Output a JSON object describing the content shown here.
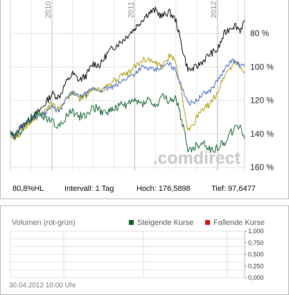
{
  "chart_data": [
    {
      "type": "line",
      "x_ticks": [
        "2010",
        "2011",
        "2012"
      ],
      "y_ticks": [
        "80 %",
        "100 %",
        "120 %",
        "140 %",
        "160 %"
      ],
      "ylim": [
        78,
        180
      ],
      "grid": true,
      "watermark": ".comdirect",
      "series_colors": [
        "#000000",
        "#a89a00",
        "#3c64c8",
        "#0b5e2a"
      ],
      "x_dates": [
        "2009-07-01",
        "2009-07-20",
        "2009-08-10",
        "2009-09-01",
        "2009-10-01",
        "2009-11-01",
        "2009-12-01",
        "2010-01-01",
        "2010-02-01",
        "2010-03-01",
        "2010-04-01",
        "2010-05-01",
        "2010-06-01",
        "2010-07-01",
        "2010-08-01",
        "2010-09-01",
        "2010-10-01",
        "2010-11-01",
        "2010-12-01",
        "2011-01-01",
        "2011-02-01",
        "2011-03-01",
        "2011-04-01",
        "2011-05-01",
        "2011-06-01",
        "2011-07-01",
        "2011-08-01",
        "2011-08-20",
        "2011-09-01",
        "2011-10-01",
        "2011-11-01",
        "2011-12-01",
        "2012-01-01",
        "2012-02-01",
        "2012-03-01",
        "2012-03-20",
        "2012-04-10",
        "2012-04-30"
      ],
      "series": [
        {
          "values": [
            100,
            98,
            103,
            106,
            109,
            113,
            118,
            124,
            122,
            130,
            136,
            132,
            135,
            142,
            141,
            148,
            152,
            155,
            159,
            163,
            168,
            172,
            174,
            170,
            173,
            168,
            150,
            140,
            138,
            140,
            144,
            148,
            150,
            160,
            164,
            165,
            162,
            168
          ]
        },
        {
          "values": [
            98,
            97,
            100,
            103,
            108,
            110,
            114,
            118,
            115,
            120,
            125,
            121,
            123,
            127,
            126,
            128,
            132,
            134,
            136,
            140,
            144,
            145,
            142,
            140,
            146,
            144,
            120,
            105,
            102,
            110,
            115,
            118,
            125,
            135,
            140,
            143,
            140,
            137
          ]
        },
        {
          "values": [
            100,
            98,
            104,
            106,
            109,
            111,
            113,
            116,
            113,
            120,
            125,
            122,
            124,
            127,
            126,
            127,
            128,
            131,
            134,
            136,
            140,
            139,
            138,
            140,
            142,
            138,
            126,
            121,
            118,
            120,
            124,
            126,
            132,
            138,
            144,
            143,
            141,
            140
          ]
        },
        {
          "values": [
            102,
            99,
            101,
            104,
            110,
            112,
            110,
            108,
            104,
            110,
            114,
            110,
            112,
            116,
            114,
            113,
            115,
            117,
            118,
            120,
            118,
            121,
            116,
            122,
            120,
            121,
            106,
            92,
            90,
            93,
            95,
            90,
            92,
            95,
            101,
            103,
            105,
            97
          ]
        }
      ]
    },
    {
      "type": "bar",
      "title": "Volumen (rot-grün)",
      "legend": [
        {
          "name": "Steigende Kurse",
          "color": "#0b5e2a"
        },
        {
          "name": "Fallende Kurse",
          "color": "#c81414"
        }
      ],
      "y_ticks": [
        "1,000",
        "0,750",
        "0,500",
        "0,250",
        "0,000"
      ],
      "ylim": [
        0,
        1
      ],
      "values": []
    }
  ],
  "stats": {
    "hl": "80,8%HL",
    "interval": "Intervall: 1 Tag",
    "high": "Hoch: 176,5898",
    "low": "Tief: 97,6477"
  },
  "timestamp": "30.04.2012 10:00 Uhr"
}
